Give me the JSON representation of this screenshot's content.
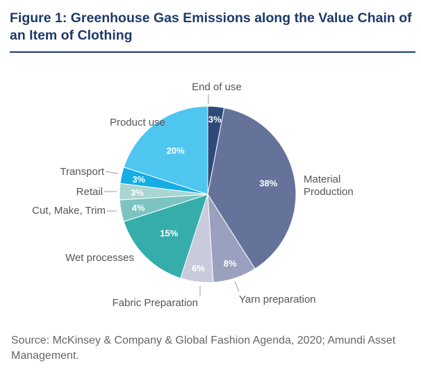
{
  "chart_data": {
    "type": "pie",
    "title": "Figure 1: Greenhouse Gas Emissions along the Value Chain of an Item of Clothing",
    "source": "Source: McKinsey & Company & Global Fashion Agenda, 2020; Amundi Asset Management.",
    "slices": [
      {
        "label": "End of use",
        "value": 3,
        "display": "3%",
        "color": "#2e4a7a"
      },
      {
        "label": "Material Production",
        "value": 38,
        "display": "38%",
        "color": "#65739b"
      },
      {
        "label": "Yarn preparation",
        "value": 8,
        "display": "8%",
        "color": "#9aa1bf"
      },
      {
        "label": "Fabric Preparation",
        "value": 6,
        "display": "6%",
        "color": "#c9cbdd"
      },
      {
        "label": "Wet processes",
        "value": 15,
        "display": "15%",
        "color": "#35aeab"
      },
      {
        "label": "Cut, Make, Trim",
        "value": 4,
        "display": "4%",
        "color": "#7cc4c0"
      },
      {
        "label": "Retail",
        "value": 3,
        "display": "3%",
        "color": "#a9d5d2"
      },
      {
        "label": "Transport",
        "value": 3,
        "display": "3%",
        "color": "#14ade6"
      },
      {
        "label": "Product use",
        "value": 20,
        "display": "20%",
        "color": "#4fc6f0"
      }
    ]
  }
}
